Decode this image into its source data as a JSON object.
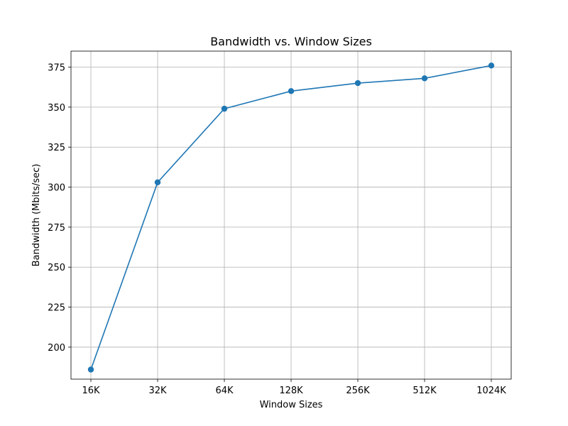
{
  "chart_data": {
    "type": "line",
    "title": "Bandwidth vs. Window Sizes",
    "xlabel": "Window Sizes",
    "ylabel": "Bandwidth (Mbits/sec)",
    "categories": [
      "16K",
      "32K",
      "64K",
      "128K",
      "256K",
      "512K",
      "1024K"
    ],
    "series": [
      {
        "values": [
          186,
          303,
          349,
          360,
          365,
          368,
          376
        ],
        "color": "#1f77b4",
        "marker": "circle"
      }
    ],
    "yticks": [
      200,
      225,
      250,
      275,
      300,
      325,
      350,
      375
    ],
    "ylim": [
      180,
      385
    ],
    "grid": true
  }
}
